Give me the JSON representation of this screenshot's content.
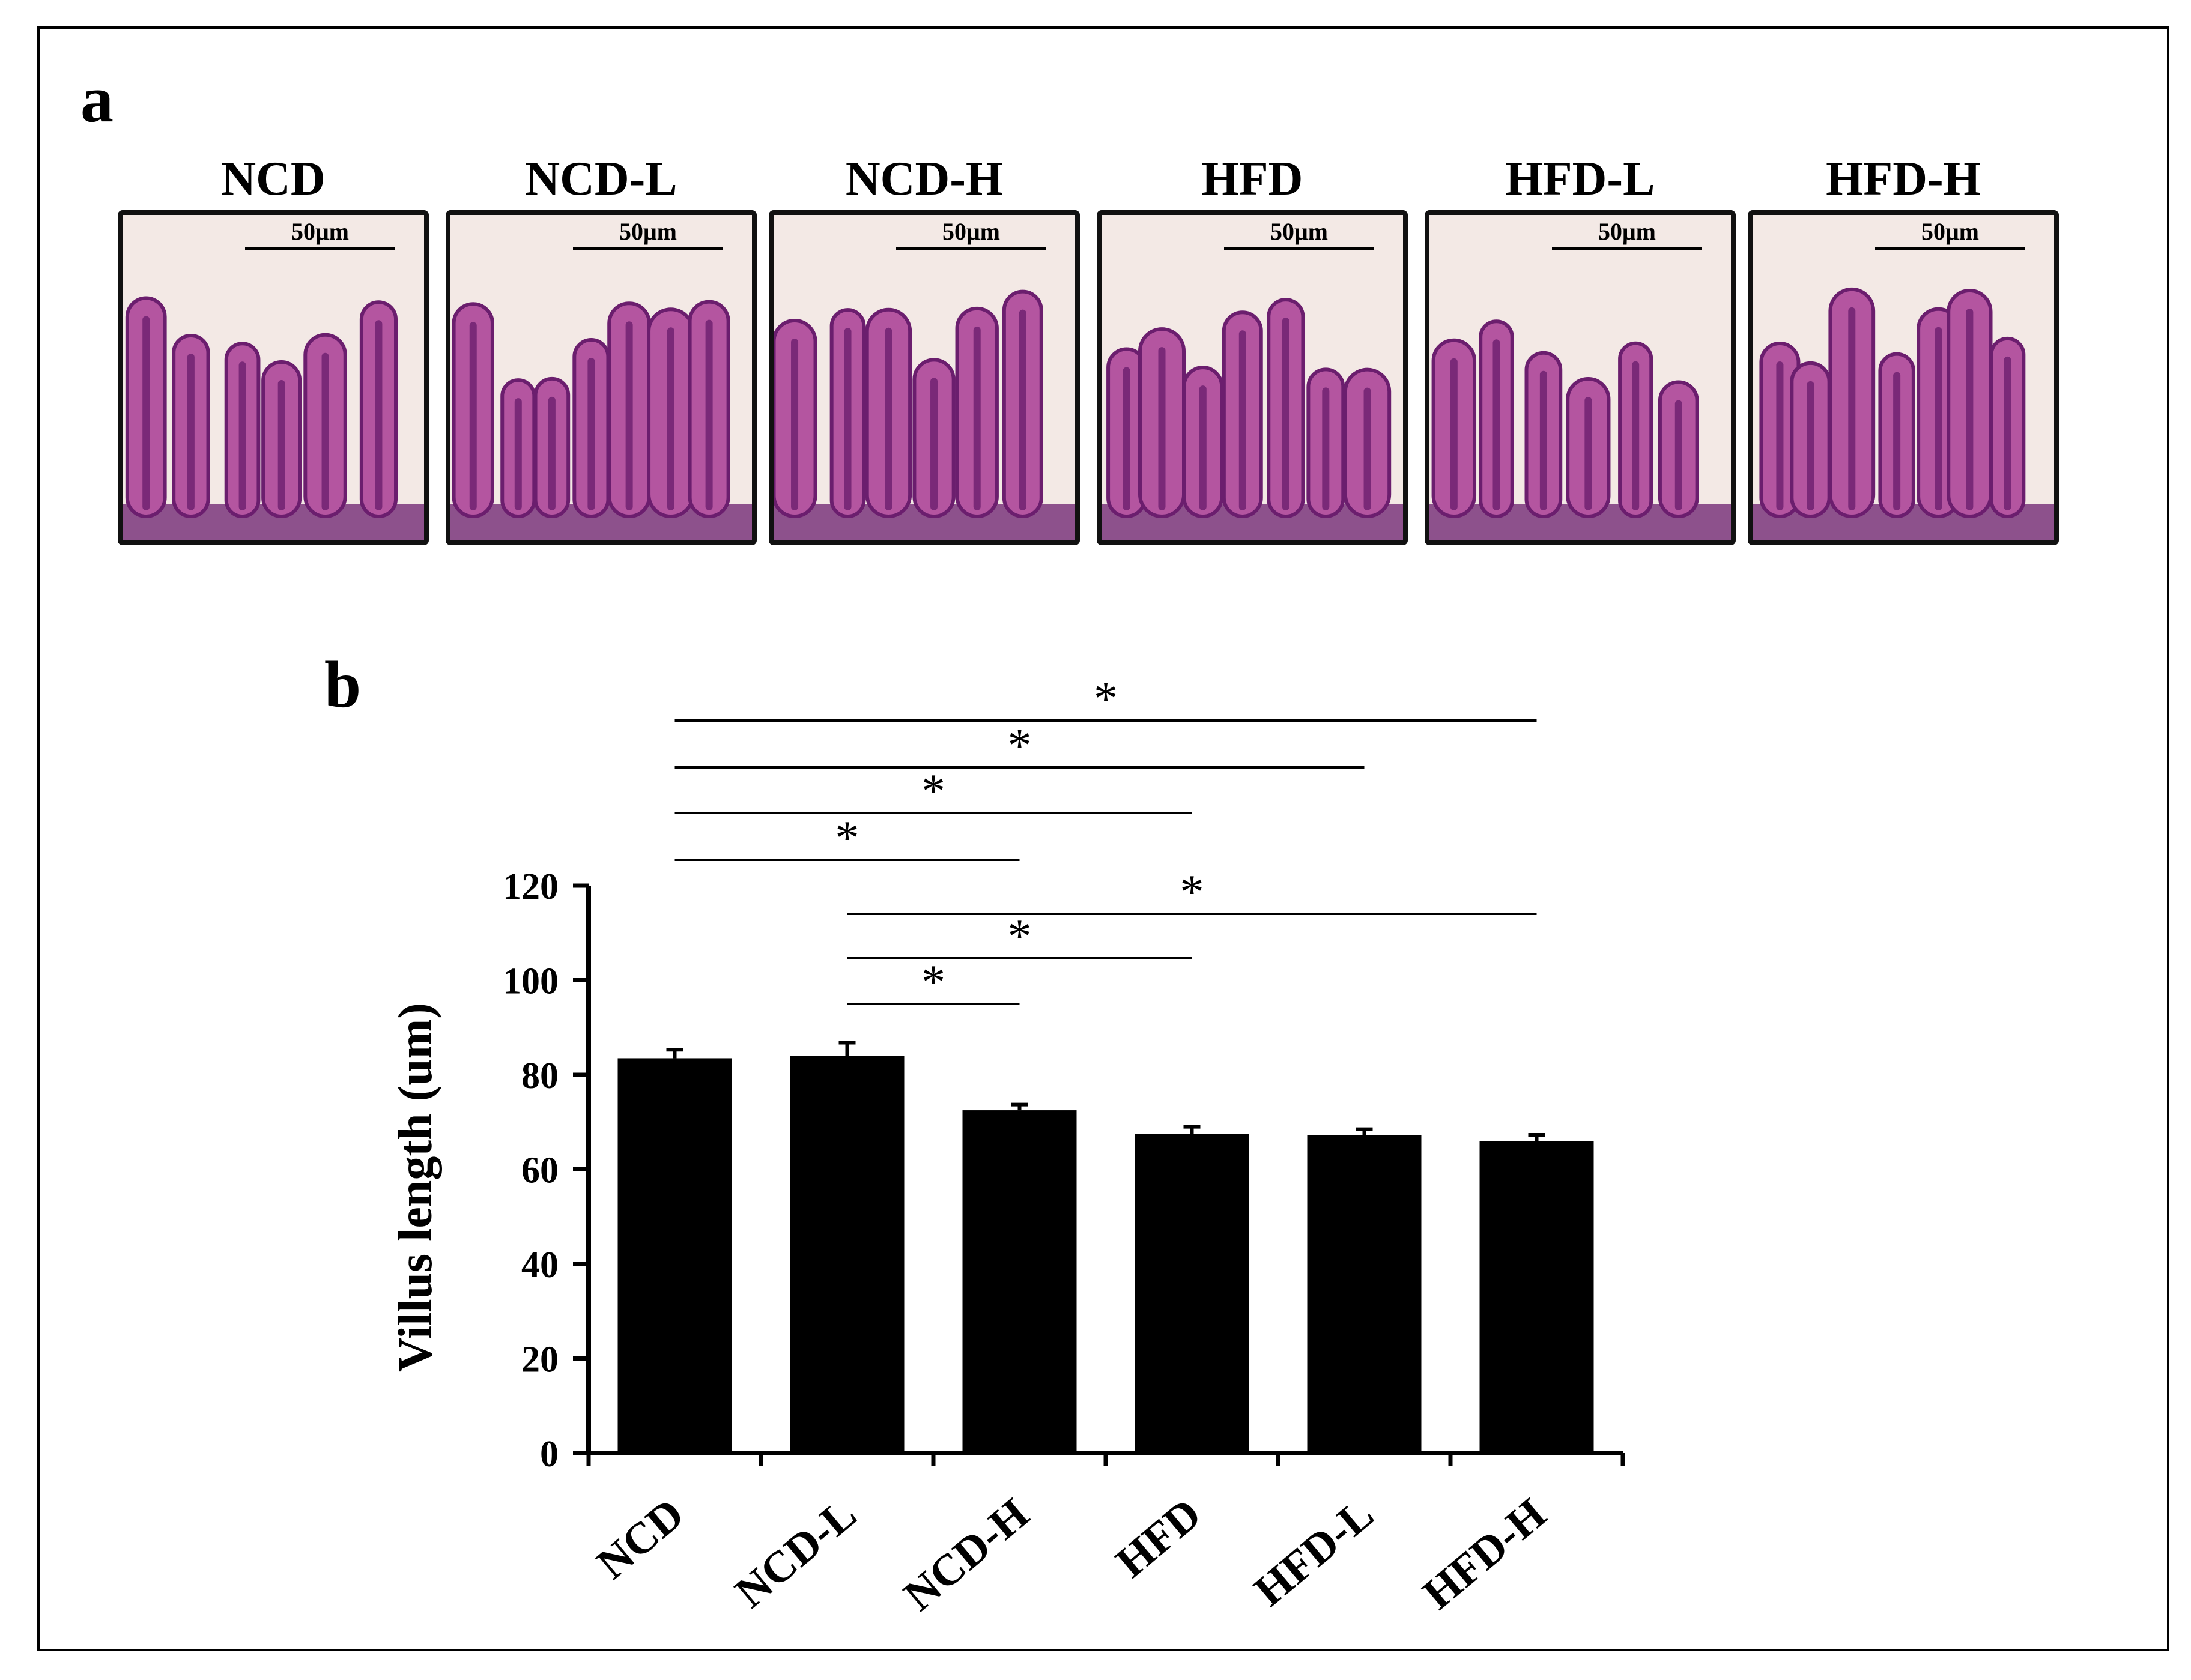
{
  "panels": {
    "a": "a",
    "b": "b"
  },
  "micrographs": [
    {
      "title": "NCD",
      "scale": "50μm"
    },
    {
      "title": "NCD-L",
      "scale": "50μm"
    },
    {
      "title": "NCD-H",
      "scale": "50μm"
    },
    {
      "title": "HFD",
      "scale": "50μm"
    },
    {
      "title": "HFD-L",
      "scale": "50μm"
    },
    {
      "title": "HFD-H",
      "scale": "50μm"
    }
  ],
  "colors": {
    "bar": "#000000",
    "stain_dark": "#6b1e6e",
    "stain_light": "#b455a0",
    "background": "#f3e9e5"
  },
  "chart_data": {
    "type": "bar",
    "title": "",
    "xlabel": "",
    "ylabel": "Villus length (um)",
    "categories": [
      "NCD",
      "NCD-L",
      "NCD-H",
      "HFD",
      "HFD-L",
      "HFD-H"
    ],
    "values": [
      83.5,
      84,
      72.5,
      67.5,
      67.3,
      66
    ],
    "errors": [
      1.8,
      2.8,
      1.2,
      1.5,
      1.2,
      1.3
    ],
    "ylim": [
      0,
      120
    ],
    "yticks": [
      0,
      20,
      40,
      60,
      80,
      100,
      120
    ],
    "grid": false,
    "significance": [
      {
        "from": 0,
        "to": 5,
        "mark": "*"
      },
      {
        "from": 0,
        "to": 4,
        "mark": "*"
      },
      {
        "from": 0,
        "to": 3,
        "mark": "*"
      },
      {
        "from": 0,
        "to": 2,
        "mark": "*"
      },
      {
        "from": 1,
        "to": 5,
        "mark": "*"
      },
      {
        "from": 1,
        "to": 3,
        "mark": "*"
      },
      {
        "from": 1,
        "to": 2,
        "mark": "*"
      }
    ]
  }
}
